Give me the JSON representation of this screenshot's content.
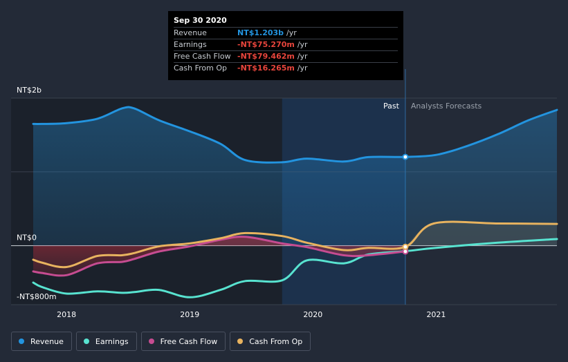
{
  "chart_data": {
    "type": "line",
    "ylim": [
      -800,
      2000
    ],
    "y_unit": "NT$m",
    "x_range": [
      2017.73,
      2021.98
    ],
    "y_tick_labels": [
      {
        "value": 2000,
        "label": "NT$2b"
      },
      {
        "value": 0,
        "label": "NT$0"
      },
      {
        "value": -800,
        "label": "-NT$800m"
      }
    ],
    "x_tick_labels": [
      {
        "value": 2018,
        "label": "2018"
      },
      {
        "value": 2019,
        "label": "2019"
      },
      {
        "value": 2020,
        "label": "2020"
      },
      {
        "value": 2021,
        "label": "2021"
      }
    ],
    "past_label": "Past",
    "forecast_label": "Analysts Forecasts",
    "past_end": 2020.75,
    "highlight_start": 2019.75,
    "series": [
      {
        "name": "Revenue",
        "color": "#2394df",
        "x": [
          2017.73,
          2017.8,
          2018.0,
          2018.25,
          2018.45,
          2018.55,
          2018.75,
          2019.0,
          2019.25,
          2019.45,
          2019.75,
          2019.95,
          2020.25,
          2020.45,
          2020.75,
          2021.0,
          2021.25,
          2021.5,
          2021.75,
          2021.98
        ],
        "y": [
          1650,
          1650,
          1660,
          1720,
          1860,
          1860,
          1700,
          1550,
          1380,
          1160,
          1130,
          1180,
          1140,
          1200,
          1203,
          1230,
          1350,
          1510,
          1700,
          1840
        ]
      },
      {
        "name": "Earnings",
        "color": "#58e3d0",
        "x": [
          2017.73,
          2017.8,
          2018.0,
          2018.25,
          2018.45,
          2018.55,
          2018.75,
          2019.0,
          2019.25,
          2019.45,
          2019.75,
          2019.95,
          2020.25,
          2020.45,
          2020.75,
          2021.0,
          2021.5,
          2021.98
        ],
        "y": [
          -500,
          -560,
          -650,
          -620,
          -640,
          -630,
          -600,
          -700,
          -600,
          -480,
          -470,
          -200,
          -240,
          -120,
          -75,
          -30,
          40,
          90
        ]
      },
      {
        "name": "Free Cash Flow",
        "color": "#c64c91",
        "x": [
          2017.73,
          2017.8,
          2018.0,
          2018.25,
          2018.45,
          2018.55,
          2018.75,
          2019.0,
          2019.25,
          2019.45,
          2019.75,
          2019.95,
          2020.25,
          2020.45,
          2020.75
        ],
        "y": [
          -350,
          -370,
          -400,
          -240,
          -220,
          -180,
          -80,
          -10,
          80,
          120,
          30,
          -20,
          -130,
          -130,
          -79
        ]
      },
      {
        "name": "Cash From Op",
        "color": "#e8b35f",
        "x": [
          2017.73,
          2017.8,
          2018.0,
          2018.25,
          2018.45,
          2018.55,
          2018.75,
          2019.0,
          2019.25,
          2019.45,
          2019.75,
          2019.95,
          2020.25,
          2020.45,
          2020.75,
          2020.98,
          2021.5,
          2021.98
        ],
        "y": [
          -190,
          -230,
          -290,
          -140,
          -130,
          -100,
          -10,
          30,
          100,
          170,
          130,
          40,
          -60,
          -30,
          -16,
          300,
          300,
          295
        ]
      }
    ]
  },
  "tooltip": {
    "date": "Sep 30 2020",
    "rows": [
      {
        "label": "Revenue",
        "value": "NT$1.203b",
        "unit": "/yr",
        "color": "#2394df"
      },
      {
        "label": "Earnings",
        "value": "-NT$75.270m",
        "unit": "/yr",
        "color": "#e8453c"
      },
      {
        "label": "Free Cash Flow",
        "value": "-NT$79.462m",
        "unit": "/yr",
        "color": "#e8453c"
      },
      {
        "label": "Cash From Op",
        "value": "-NT$16.265m",
        "unit": "/yr",
        "color": "#e8453c"
      }
    ]
  },
  "legend": [
    {
      "label": "Revenue",
      "color": "#2394df"
    },
    {
      "label": "Earnings",
      "color": "#58e3d0"
    },
    {
      "label": "Free Cash Flow",
      "color": "#c64c91"
    },
    {
      "label": "Cash From Op",
      "color": "#e8b35f"
    }
  ]
}
